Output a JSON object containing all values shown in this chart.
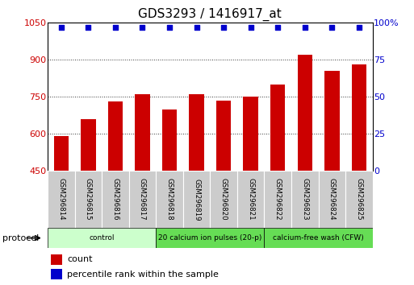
{
  "title": "GDS3293 / 1416917_at",
  "samples": [
    "GSM296814",
    "GSM296815",
    "GSM296816",
    "GSM296817",
    "GSM296818",
    "GSM296819",
    "GSM296820",
    "GSM296821",
    "GSM296822",
    "GSM296823",
    "GSM296824",
    "GSM296825"
  ],
  "counts": [
    590,
    660,
    730,
    760,
    700,
    760,
    735,
    750,
    800,
    920,
    855,
    880
  ],
  "percentile_ranks": [
    97,
    97,
    97,
    97,
    97,
    97,
    97,
    97,
    97,
    97,
    97,
    97
  ],
  "bar_color": "#cc0000",
  "dot_color": "#0000cc",
  "ylim_left": [
    450,
    1050
  ],
  "ylim_right": [
    0,
    100
  ],
  "yticks_left": [
    450,
    600,
    750,
    900,
    1050
  ],
  "yticks_right": [
    0,
    25,
    50,
    75,
    100
  ],
  "grid_color": "#333333",
  "protocol_label": "protocol",
  "legend_count_label": "count",
  "legend_pct_label": "percentile rank within the sample",
  "title_fontsize": 11,
  "tick_fontsize": 8,
  "label_fontsize": 7,
  "bg_color": "#ffffff",
  "group_colors": [
    "#ccffcc",
    "#66dd66",
    "#44cc44"
  ],
  "group_labels": [
    "control",
    "20 calcium ion pulses (20-p)",
    "calcium-free wash (CFW)"
  ],
  "group_starts": [
    0,
    4,
    8
  ],
  "group_ends": [
    4,
    8,
    12
  ]
}
